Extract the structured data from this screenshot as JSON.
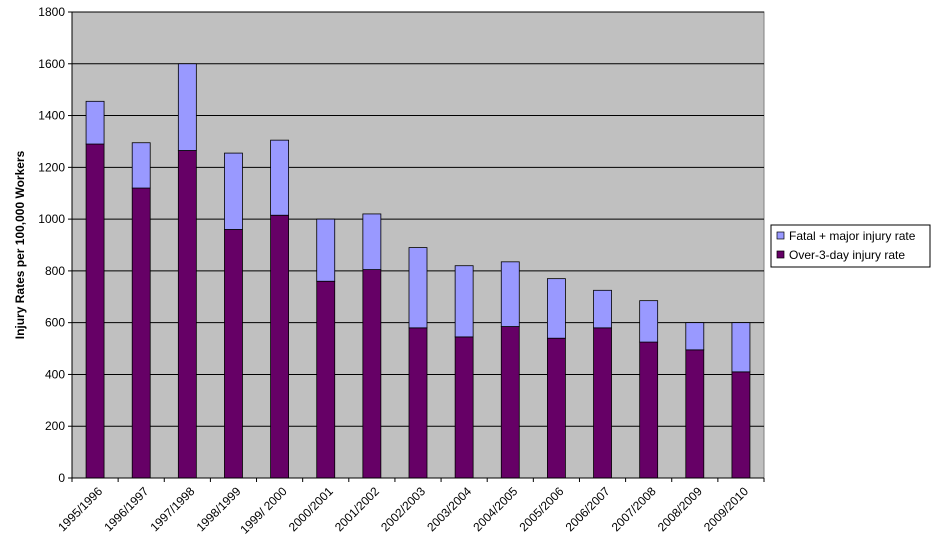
{
  "chart_data": {
    "type": "bar",
    "stacked": true,
    "title": "",
    "xlabel": "",
    "ylabel": "Injury Rates per 100,000 Workers",
    "ylim": [
      0,
      1800
    ],
    "yticks": [
      0,
      200,
      400,
      600,
      800,
      1000,
      1200,
      1400,
      1600,
      1800
    ],
    "grid": "horizontal",
    "legend_position": "right",
    "plot_background": "#c0c0c0",
    "categories": [
      "1995/1996",
      "1996/1997",
      "1997/1998",
      "1998/1999",
      "1999/ 2000",
      "2000/2001",
      "2001/2002",
      "2002/2003",
      "2003/2004",
      "2004/2005",
      "2005/2006",
      "2006/2007",
      "2007/2008",
      "2008/2009",
      "2009/2010"
    ],
    "series": [
      {
        "name": "Over-3-day injury rate",
        "color": "#660066",
        "values": [
          1290,
          1120,
          1265,
          960,
          1015,
          760,
          805,
          580,
          545,
          585,
          540,
          580,
          525,
          495,
          410
        ]
      },
      {
        "name": "Fatal + major injury rate",
        "color": "#9999ff",
        "values": [
          165,
          175,
          335,
          295,
          290,
          240,
          215,
          310,
          275,
          250,
          230,
          145,
          160,
          105,
          190
        ]
      }
    ],
    "legend_order": [
      "Fatal + major injury rate",
      "Over-3-day injury rate"
    ]
  }
}
